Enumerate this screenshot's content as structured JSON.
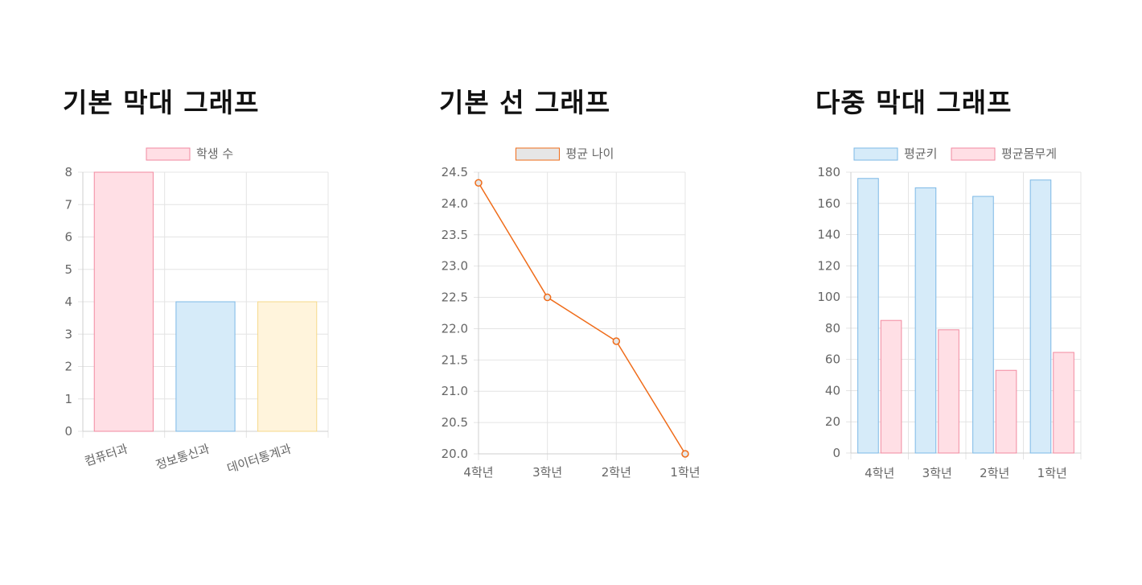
{
  "charts": [
    {
      "heading": "기본 막대 그래프"
    },
    {
      "heading": "기본 선 그래프"
    },
    {
      "heading": "다중 막대 그래프"
    }
  ],
  "chart_data": [
    {
      "type": "bar",
      "title": "",
      "categories": [
        "컴퓨터과",
        "정보통신과",
        "데이터통계과"
      ],
      "series": [
        {
          "name": "학생 수",
          "values": [
            8,
            4,
            4
          ]
        }
      ],
      "bar_colors": [
        "#ffdfe5",
        "#d6ebf9",
        "#fff4dc"
      ],
      "bar_borders": [
        "#f28aa0",
        "#7cb8e6",
        "#f6d98a"
      ],
      "ylim": [
        0,
        8
      ],
      "yticks": [
        0,
        1,
        2,
        3,
        4,
        5,
        6,
        7,
        8
      ],
      "grid": true,
      "legend_position": "top"
    },
    {
      "type": "line",
      "title": "",
      "categories": [
        "4학년",
        "3학년",
        "2학년",
        "1학년"
      ],
      "series": [
        {
          "name": "평균 나이",
          "values": [
            24.33,
            22.5,
            21.8,
            20.0
          ],
          "color": "#ef6c1a",
          "fill": "#e6e6e6"
        }
      ],
      "ylim": [
        20.0,
        24.5
      ],
      "yticks": [
        "20.0",
        "20.5",
        "21.0",
        "21.5",
        "22.0",
        "22.5",
        "23.0",
        "23.5",
        "24.0",
        "24.5"
      ],
      "grid": true,
      "legend_position": "top"
    },
    {
      "type": "bar",
      "title": "",
      "categories": [
        "4학년",
        "3학년",
        "2학년",
        "1학년"
      ],
      "series": [
        {
          "name": "평균키",
          "values": [
            176,
            170,
            164.5,
            175
          ],
          "color": "#d6ebf9",
          "border": "#7cb8e6"
        },
        {
          "name": "평균몸무게",
          "values": [
            85,
            79,
            53,
            64.5
          ],
          "color": "#ffdfe5",
          "border": "#f28aa0"
        }
      ],
      "ylim": [
        0,
        180
      ],
      "yticks": [
        0,
        20,
        40,
        60,
        80,
        100,
        120,
        140,
        160,
        180
      ],
      "grid": true,
      "legend_position": "top"
    }
  ]
}
